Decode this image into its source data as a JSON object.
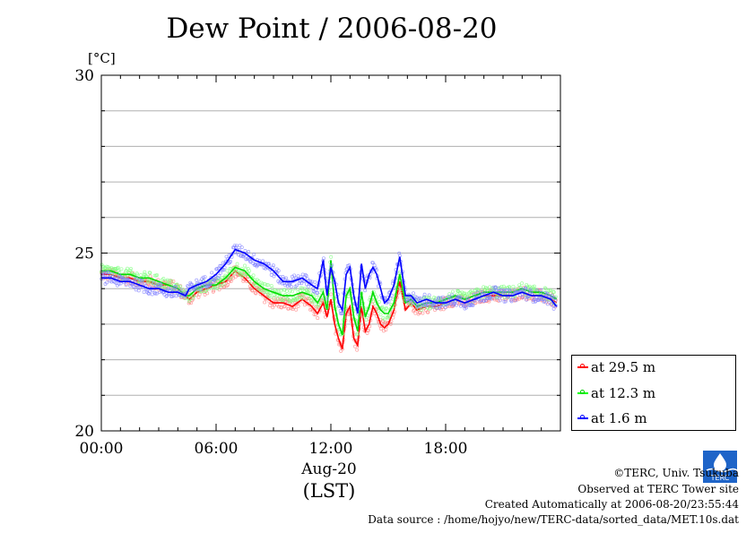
{
  "title": "Dew Point / 2006-08-20",
  "y_unit": "[°C]",
  "x_date": "Aug-20",
  "x_unit": "(LST)",
  "credits": {
    "copyright": "©TERC, Univ. Tsukuba",
    "site": "Observed at TERC Tower site",
    "created": "Created Automatically at 2006-08-20/23:55:44",
    "source": "Data source : /home/hojyo/new/TERC-data/sorted_data/MET.10s.dat"
  },
  "logo_text": "TERC",
  "chart_data": {
    "type": "line",
    "title": "Dew Point / 2006-08-20",
    "ylabel": "[°C]",
    "xlabel": "(LST)",
    "ylim": [
      20,
      30
    ],
    "xlim": [
      0,
      24
    ],
    "y_ticks": [
      20,
      25,
      30
    ],
    "x_ticks": [
      0,
      6,
      12,
      18
    ],
    "x_tick_labels": [
      "00:00",
      "06:00",
      "12:00",
      "18:00"
    ],
    "grid": true,
    "legend": "bottom-right",
    "series": [
      {
        "name": "at 29.5 m",
        "color": "#ff0000",
        "x": [
          0,
          0.5,
          1,
          1.5,
          2,
          2.5,
          3,
          3.5,
          4,
          4.4,
          4.6,
          5,
          5.5,
          6,
          6.5,
          7,
          7.5,
          8,
          8.5,
          9,
          9.5,
          10,
          10.5,
          11,
          11.3,
          11.6,
          11.8,
          12.0,
          12.2,
          12.4,
          12.6,
          12.8,
          13.0,
          13.2,
          13.4,
          13.6,
          13.8,
          14.0,
          14.2,
          14.4,
          14.6,
          14.8,
          15.0,
          15.3,
          15.6,
          15.9,
          16.2,
          16.5,
          17,
          17.5,
          18,
          18.5,
          19,
          19.5,
          20,
          20.5,
          21,
          21.5,
          22,
          22.5,
          23,
          23.5,
          23.8
        ],
        "values": [
          24.4,
          24.4,
          24.3,
          24.3,
          24.2,
          24.2,
          24.1,
          24.1,
          24.0,
          23.8,
          23.7,
          23.9,
          24.0,
          24.1,
          24.2,
          24.5,
          24.3,
          24.0,
          23.8,
          23.6,
          23.6,
          23.5,
          23.7,
          23.5,
          23.3,
          23.6,
          23.2,
          23.7,
          23.0,
          22.6,
          22.3,
          23.3,
          23.5,
          22.6,
          22.4,
          23.5,
          22.8,
          23.0,
          23.5,
          23.3,
          23.0,
          22.9,
          23.0,
          23.4,
          24.2,
          23.4,
          23.6,
          23.4,
          23.5,
          23.5,
          23.6,
          23.7,
          23.6,
          23.7,
          23.8,
          23.8,
          23.8,
          23.8,
          23.9,
          23.8,
          23.8,
          23.7,
          23.6
        ]
      },
      {
        "name": "at 12.3 m",
        "color": "#00ff00",
        "x": [
          0,
          0.5,
          1,
          1.5,
          2,
          2.5,
          3,
          3.5,
          4,
          4.4,
          4.6,
          5,
          5.5,
          6,
          6.5,
          7,
          7.5,
          8,
          8.5,
          9,
          9.5,
          10,
          10.5,
          11,
          11.3,
          11.6,
          11.8,
          12.0,
          12.2,
          12.4,
          12.6,
          12.8,
          13.0,
          13.2,
          13.4,
          13.6,
          13.8,
          14.0,
          14.2,
          14.4,
          14.6,
          14.8,
          15.0,
          15.3,
          15.6,
          15.9,
          16.2,
          16.5,
          17,
          17.5,
          18,
          18.5,
          19,
          19.5,
          20,
          20.5,
          21,
          21.5,
          22,
          22.5,
          23,
          23.5,
          23.8
        ],
        "values": [
          24.5,
          24.5,
          24.4,
          24.4,
          24.3,
          24.3,
          24.2,
          24.1,
          24.0,
          23.8,
          23.8,
          24.0,
          24.1,
          24.1,
          24.3,
          24.6,
          24.5,
          24.2,
          24.0,
          23.9,
          23.8,
          23.8,
          23.9,
          23.8,
          23.6,
          23.9,
          23.4,
          24.8,
          23.5,
          23.0,
          22.7,
          23.8,
          24.0,
          23.2,
          22.8,
          23.9,
          23.2,
          23.5,
          23.9,
          23.6,
          23.4,
          23.3,
          23.3,
          23.6,
          24.4,
          23.6,
          23.7,
          23.5,
          23.6,
          23.6,
          23.7,
          23.8,
          23.7,
          23.8,
          23.9,
          23.9,
          23.9,
          23.9,
          24.0,
          23.9,
          23.9,
          23.8,
          23.7
        ]
      },
      {
        "name": "at 1.6 m",
        "color": "#0000ff",
        "x": [
          0,
          0.5,
          1,
          1.5,
          2,
          2.5,
          3,
          3.5,
          4,
          4.4,
          4.6,
          5,
          5.5,
          6,
          6.5,
          7,
          7.5,
          8,
          8.5,
          9,
          9.5,
          10,
          10.5,
          11,
          11.3,
          11.6,
          11.8,
          12.0,
          12.2,
          12.4,
          12.6,
          12.8,
          13.0,
          13.2,
          13.4,
          13.6,
          13.8,
          14.0,
          14.2,
          14.4,
          14.6,
          14.8,
          15.0,
          15.3,
          15.6,
          15.9,
          16.2,
          16.5,
          17,
          17.5,
          18,
          18.5,
          19,
          19.5,
          20,
          20.5,
          21,
          21.5,
          22,
          22.5,
          23,
          23.5,
          23.8
        ],
        "values": [
          24.3,
          24.3,
          24.2,
          24.2,
          24.1,
          24.0,
          24.0,
          23.9,
          23.9,
          23.8,
          24.0,
          24.1,
          24.2,
          24.4,
          24.7,
          25.1,
          25.0,
          24.8,
          24.7,
          24.5,
          24.2,
          24.2,
          24.3,
          24.1,
          24.0,
          24.8,
          23.8,
          24.6,
          24.2,
          23.6,
          23.4,
          24.4,
          24.6,
          23.8,
          23.3,
          24.7,
          24.0,
          24.4,
          24.6,
          24.4,
          24.0,
          23.6,
          23.7,
          24.1,
          24.9,
          23.8,
          23.8,
          23.6,
          23.7,
          23.6,
          23.6,
          23.7,
          23.6,
          23.7,
          23.8,
          23.9,
          23.8,
          23.8,
          23.9,
          23.8,
          23.8,
          23.7,
          23.5
        ]
      }
    ]
  }
}
